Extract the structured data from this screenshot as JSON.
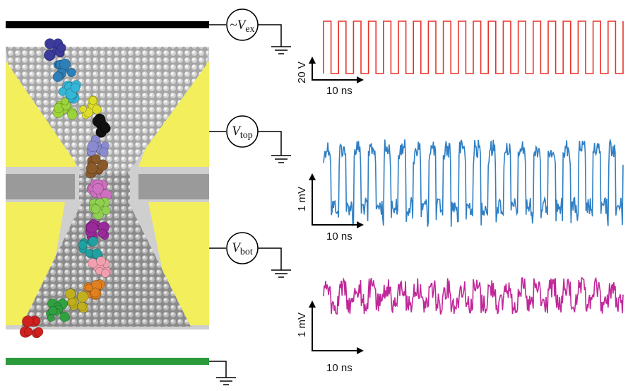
{
  "figure": {
    "colors": {
      "electrode_top": "#000000",
      "electrode_bottom": "#2a9a3a",
      "gold_layer": "#f3ee5c",
      "dielectric": "#c9c9c9",
      "membrane_mid": "#9a9a9a",
      "pore": "#8c8c8c",
      "excitation_trace": "#e8332a",
      "top_trace": "#2f7fc4",
      "bottom_trace": "#c0289a"
    },
    "sources": {
      "ex": {
        "prefix": "~",
        "symbol": "V",
        "subscript": "ex"
      },
      "top": {
        "prefix": "",
        "symbol": "V",
        "subscript": "top"
      },
      "bot": {
        "prefix": "",
        "symbol": "V",
        "subscript": "bot"
      }
    },
    "ground_icon": "ground-symbol-icon",
    "polymer_icon": "ssdna-strand-icon",
    "bead_colors": [
      "#3b3b9e",
      "#2d7fb8",
      "#35b6d6",
      "#9bd43a",
      "#dede2a",
      "#111111",
      "#8a8ad0",
      "#8a5a2a",
      "#d070c0",
      "#90d050",
      "#9a2a9a",
      "#20a0a0",
      "#f2a0b0",
      "#e08020",
      "#c0b020",
      "#30a040",
      "#d02020"
    ]
  },
  "panels": [
    {
      "id": "excitation",
      "scalebar": {
        "y_label": "20 V",
        "x_label": "10 ns"
      }
    },
    {
      "id": "top",
      "scalebar": {
        "y_label": "1 mV",
        "x_label": "10 ns"
      }
    },
    {
      "id": "bottom",
      "scalebar": {
        "y_label": "1 mV",
        "x_label": "10 ns"
      }
    }
  ]
}
